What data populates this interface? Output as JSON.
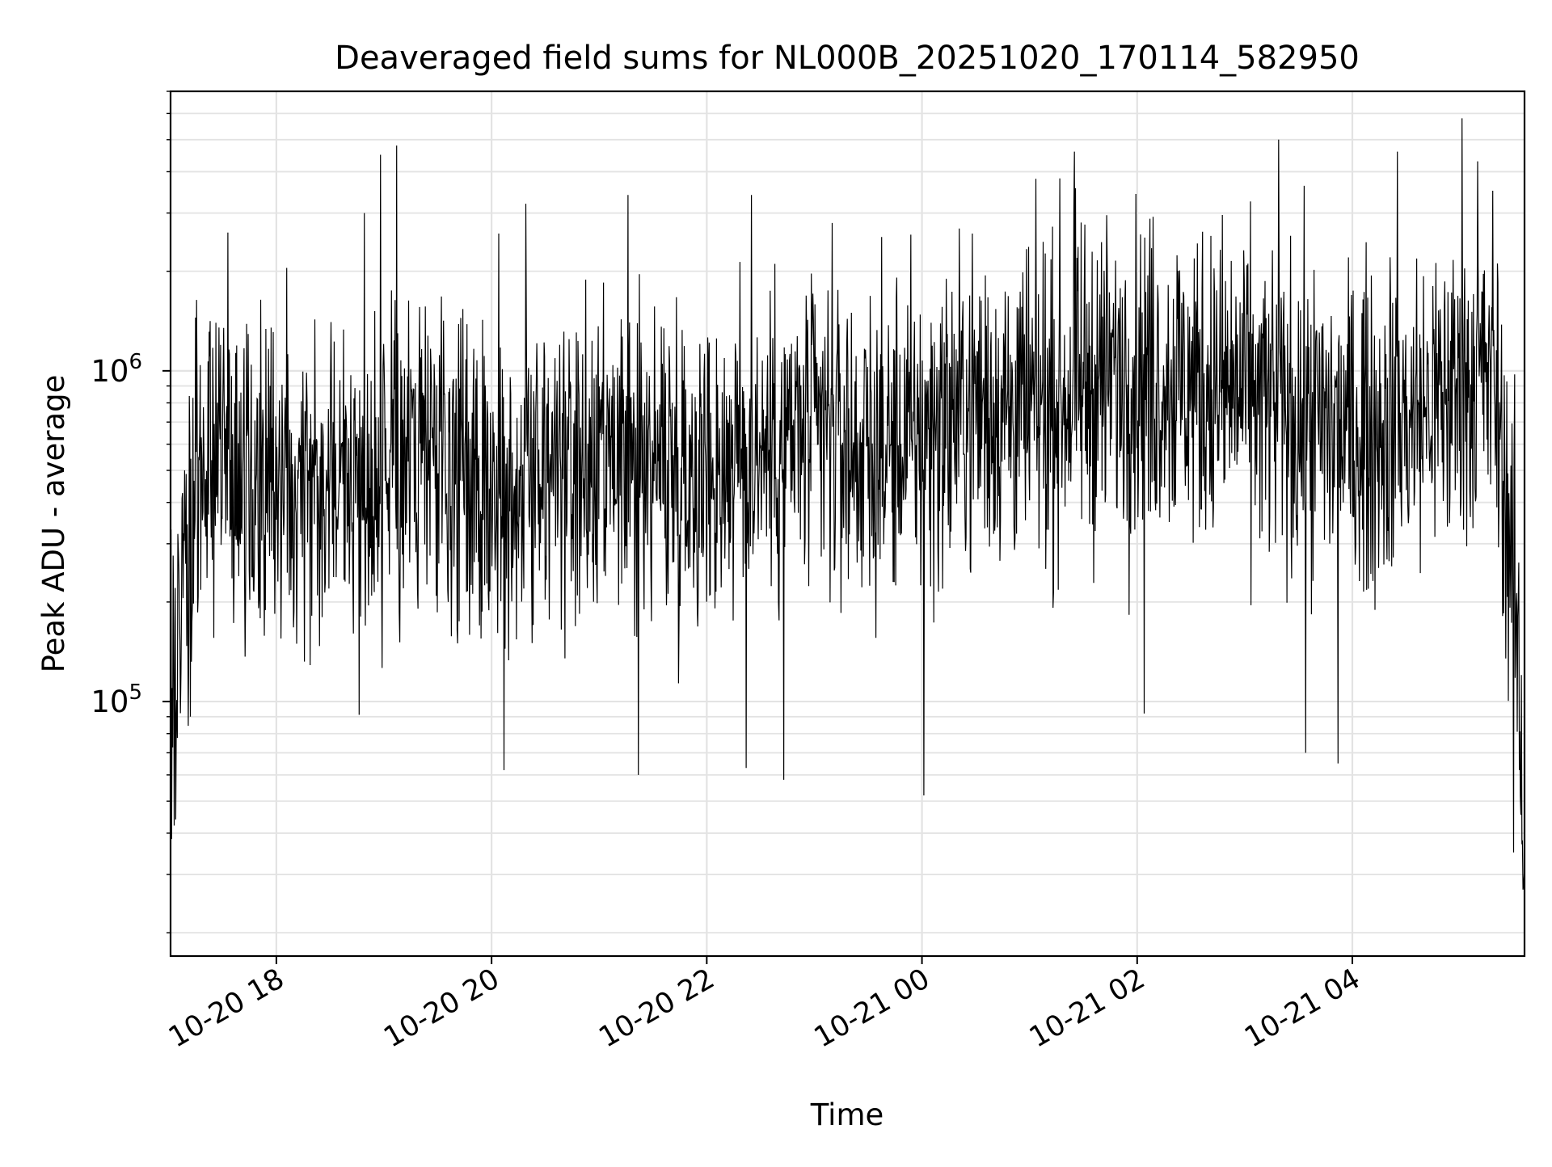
{
  "chart_data": {
    "type": "line",
    "title": "Deaveraged field sums for NL000B_20251020_170114_582950",
    "xlabel": "Time",
    "ylabel": "Peak ADU - average",
    "xscale": "time",
    "yscale": "log",
    "xlim": [
      "2025-10-20 17:01",
      "2025-10-21 05:36"
    ],
    "ylim": [
      17000,
      7000000
    ],
    "grid": true,
    "legend": "none",
    "x_ticks": [
      {
        "time": "2025-10-20 18:00",
        "label": "10-20 18"
      },
      {
        "time": "2025-10-20 20:00",
        "label": "10-20 20"
      },
      {
        "time": "2025-10-20 22:00",
        "label": "10-20 22"
      },
      {
        "time": "2025-10-21 00:00",
        "label": "10-21 00"
      },
      {
        "time": "2025-10-21 02:00",
        "label": "10-21 02"
      },
      {
        "time": "2025-10-21 04:00",
        "label": "10-21 04"
      }
    ],
    "y_ticks": [
      {
        "value": 100000,
        "base": "10",
        "exp": "5"
      },
      {
        "value": 1000000,
        "base": "10",
        "exp": "6"
      }
    ],
    "series": [
      {
        "name": "Deaveraged field sums",
        "color": "#000000",
        "x_start": "2025-10-20 17:01",
        "x_end": "2025-10-21 05:36",
        "envelope_x_hours": [
          0.0,
          0.3,
          0.8,
          1.2,
          1.6,
          2.0,
          2.2,
          2.6,
          3.0,
          3.5,
          4.0,
          4.5,
          5.0,
          5.5,
          6.0,
          6.5,
          7.0,
          7.5,
          8.0,
          8.5,
          9.0,
          9.5,
          10.0,
          10.5,
          11.0,
          11.5,
          12.0,
          12.3,
          12.5,
          12.58
        ],
        "envelope_y_median": [
          100000,
          600000,
          400000,
          550000,
          500000,
          400000,
          600000,
          500000,
          450000,
          500000,
          450000,
          550000,
          500000,
          600000,
          650000,
          550000,
          650000,
          800000,
          750000,
          900000,
          1000000,
          900000,
          850000,
          700000,
          650000,
          700000,
          900000,
          1000000,
          200000,
          40000
        ],
        "spike_peaks": [
          {
            "t_hours": 1.8,
            "value": 3000000
          },
          {
            "t_hours": 1.95,
            "value": 4500000
          },
          {
            "t_hours": 2.1,
            "value": 4800000
          },
          {
            "t_hours": 3.05,
            "value": 2600000
          },
          {
            "t_hours": 3.3,
            "value": 3200000
          },
          {
            "t_hours": 4.25,
            "value": 3400000
          },
          {
            "t_hours": 5.4,
            "value": 3400000
          },
          {
            "t_hours": 6.15,
            "value": 2800000
          },
          {
            "t_hours": 7.45,
            "value": 2600000
          },
          {
            "t_hours": 8.4,
            "value": 4600000
          },
          {
            "t_hours": 10.3,
            "value": 5000000
          },
          {
            "t_hours": 11.4,
            "value": 4600000
          },
          {
            "t_hours": 12.0,
            "value": 5800000
          },
          {
            "t_hours": 12.15,
            "value": 4300000
          }
        ],
        "dip_troughs": [
          {
            "t_hours": 0.05,
            "value": 44000
          },
          {
            "t_hours": 3.1,
            "value": 62000
          },
          {
            "t_hours": 4.35,
            "value": 60000
          },
          {
            "t_hours": 5.35,
            "value": 63000
          },
          {
            "t_hours": 5.7,
            "value": 58000
          },
          {
            "t_hours": 7.0,
            "value": 52000
          },
          {
            "t_hours": 9.05,
            "value": 92000
          },
          {
            "t_hours": 10.55,
            "value": 70000
          },
          {
            "t_hours": 10.85,
            "value": 65000
          },
          {
            "t_hours": 12.48,
            "value": 35000
          },
          {
            "t_hours": 12.57,
            "value": 27000
          }
        ]
      }
    ]
  }
}
